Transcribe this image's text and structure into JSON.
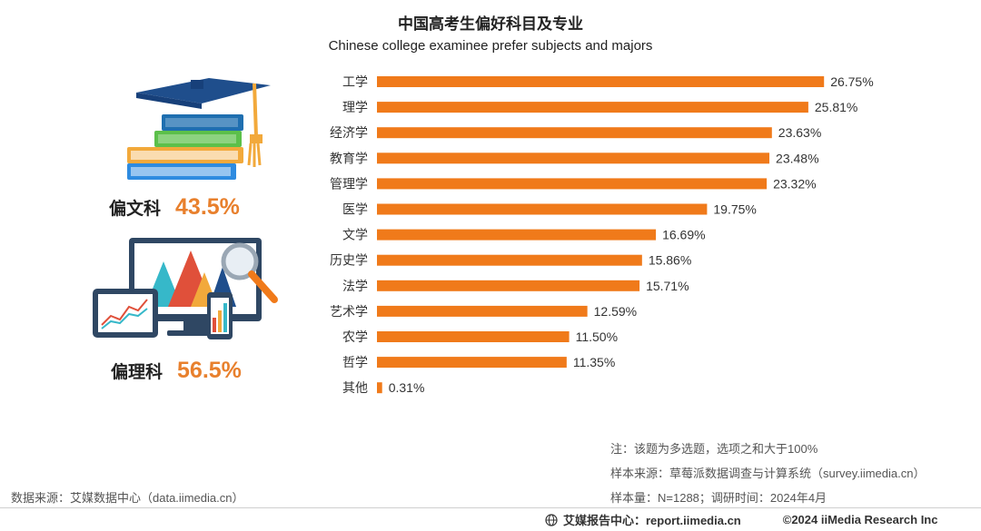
{
  "title_cn": "中国高考生偏好科目及专业",
  "title_en": "Chinese college examinee prefer subjects and majors",
  "summary": {
    "liberal_label": "偏文科",
    "liberal_value": "43.5%",
    "science_label": "偏理科",
    "science_value": "56.5%"
  },
  "notes": {
    "note1": "注：该题为多选题，选项之和大于100%",
    "note2": "样本来源：草莓派数据调查与计算系统（survey.iimedia.cn）",
    "note3": "样本量：N=1288；调研时间：2024年4月",
    "source": "数据来源：艾媒数据中心（data.iimedia.cn）"
  },
  "footer": {
    "center": "艾媒报告中心：report.iimedia.cn",
    "copyright": "©2024  iiMedia Research  Inc"
  },
  "colors": {
    "bar": "#F07A1A",
    "accent": "#E8802D"
  },
  "chart_data": {
    "type": "bar",
    "orientation": "horizontal",
    "categories": [
      "工学",
      "理学",
      "经济学",
      "教育学",
      "管理学",
      "医学",
      "文学",
      "历史学",
      "法学",
      "艺术学",
      "农学",
      "哲学",
      "其他"
    ],
    "values": [
      26.75,
      25.81,
      23.63,
      23.48,
      23.32,
      19.75,
      16.69,
      15.86,
      15.71,
      12.59,
      11.5,
      11.35,
      0.31
    ],
    "value_labels": [
      "26.75%",
      "25.81%",
      "23.63%",
      "23.48%",
      "23.32%",
      "19.75%",
      "16.69%",
      "15.86%",
      "15.71%",
      "12.59%",
      "11.50%",
      "11.35%",
      "0.31%"
    ],
    "title": "中国高考生偏好科目及专业",
    "subtitle": "Chinese college examinee prefer subjects and majors",
    "unit": "%",
    "grid": false,
    "legend": "none"
  }
}
